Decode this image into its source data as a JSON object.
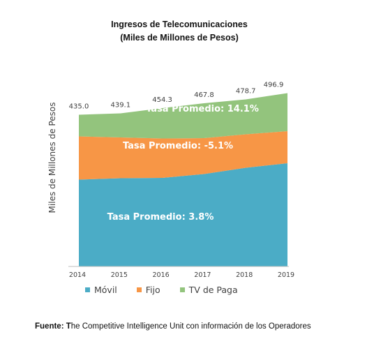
{
  "title_line1": "Ingresos de Telecomunicaciones",
  "title_line2": "(Miles de Millones de Pesos)",
  "source_label": "Fuente: T",
  "source_text": "he Competitive Intelligence Unit con información de los Operadores",
  "colors": {
    "movil": "#4bacc6",
    "fijo": "#f79646",
    "tv": "#93c47d",
    "axis": "#bfbfbf",
    "text": "#404040"
  },
  "chart_data": {
    "type": "area",
    "stacked": true,
    "ylabel": "Miles de Millones de Pesos",
    "xlabel": "",
    "x": [
      "2014",
      "2015",
      "2016",
      "2017",
      "2018",
      "2019"
    ],
    "totals": [
      435.0,
      439.1,
      454.3,
      467.8,
      478.7,
      496.9
    ],
    "total_labels": [
      "435.0",
      "439.1",
      "454.3",
      "467.8",
      "478.7",
      "496.9"
    ],
    "series": [
      {
        "name": "Móvil",
        "values": [
          249,
          253,
          254,
          265,
          283,
          296
        ]
      },
      {
        "name": "Fijo",
        "values": [
          124,
          117,
          113,
          103,
          96,
          92
        ]
      },
      {
        "name": "TV de Paga",
        "values": [
          62,
          69,
          87,
          100,
          100,
          109
        ]
      }
    ],
    "annotations": [
      {
        "series": "Móvil",
        "text": "Tasa Promedio: 3.8%"
      },
      {
        "series": "Fijo",
        "text": "Tasa Promedio: -5.1%"
      },
      {
        "series": "TV de Paga",
        "text": "Tasa Promedio: 14.1%"
      }
    ],
    "ylim": [
      0,
      500
    ],
    "grid": false,
    "legend_position": "bottom"
  }
}
